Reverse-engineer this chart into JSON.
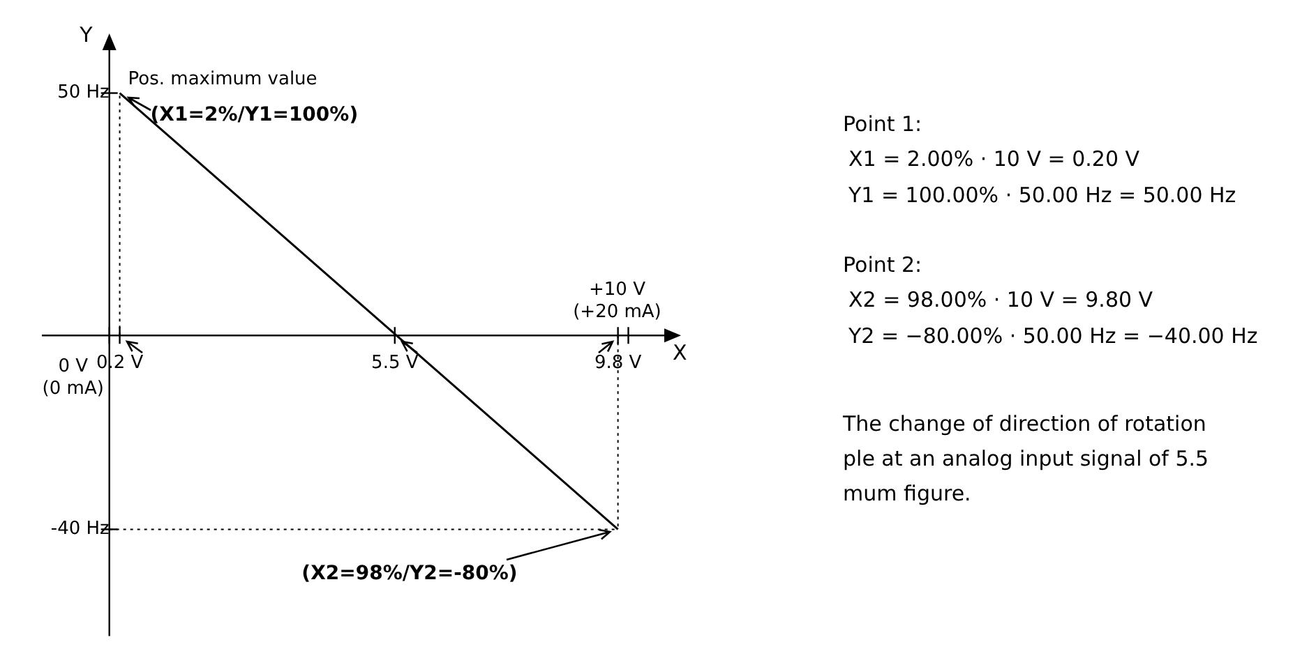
{
  "chart_data": {
    "type": "line",
    "xlabel": "X",
    "ylabel": "Y",
    "x": [
      0.2,
      9.8
    ],
    "series": [
      {
        "color": "#000000",
        "values": [
          50,
          -40
        ]
      }
    ],
    "xlim": [
      -1.3,
      10.8
    ],
    "ylim": [
      -62,
      60
    ],
    "xticks": [
      {
        "value": 0,
        "label": null
      },
      {
        "value": 0.2,
        "label": "0.2 V"
      },
      {
        "value": 5.5,
        "label": "5.5 V"
      },
      {
        "value": 9.8,
        "label": "9.8 V"
      },
      {
        "value": 10,
        "label": null
      }
    ],
    "yticks": [
      {
        "value": 50,
        "label": "50 Hz"
      },
      {
        "value": -40,
        "label": "-40 Hz"
      }
    ],
    "grid": false,
    "legend": false,
    "marker": "none",
    "line_style": "solid",
    "ref_lines": [
      {
        "axis": "x",
        "value": 0.2,
        "line_style": "dotted",
        "color": "#000000"
      },
      {
        "axis": "x",
        "value": 9.8,
        "line_style": "dotted",
        "color": "#000000"
      },
      {
        "axis": "y",
        "value": -40,
        "line_style": "dotted",
        "color": "#000000"
      }
    ],
    "annotations": [
      "Pos. maximum value",
      "0 V (0 mA)",
      "+10 V (+20 mA)",
      {
        "text": "(X1=2%/Y1=100%)",
        "x": 0.2,
        "y": 50
      },
      {
        "text": "(X2=98%/Y2=-80%)",
        "x": 9.8,
        "y": -40
      },
      "Point 1:",
      "X1 = 2.00% · 10 V = 0.20 V",
      "Y1 = 100.00% · 50.00 Hz = 50.00 Hz",
      "Point 2:",
      "X2 = 98.00% · 10 V = 9.80 V",
      "Y2 = −80.00% · 50.00 Hz = −40.00 Hz",
      "The change of direction of rotation",
      "ple at an analog input signal of 5.5",
      "mum figure."
    ]
  }
}
